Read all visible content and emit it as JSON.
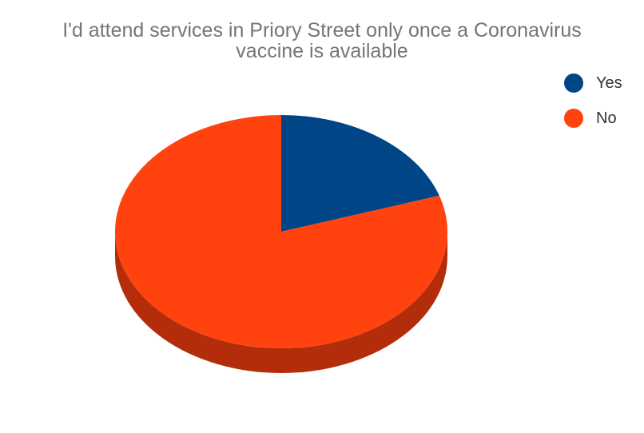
{
  "chart_data": {
    "type": "pie",
    "title": "I'd attend services in Priory Street only once a Coronavirus vaccine is available",
    "categories": [
      "Yes",
      "No"
    ],
    "values": [
      20,
      80
    ],
    "colors": [
      "#004586",
      "#ff420e"
    ],
    "side_colors": [
      "#003466",
      "#b32d0a"
    ],
    "legend": {
      "position": "top-right",
      "items": [
        {
          "label": "Yes",
          "color": "#004586"
        },
        {
          "label": "No",
          "color": "#ff420e"
        }
      ]
    },
    "style": "3d-tilted"
  }
}
